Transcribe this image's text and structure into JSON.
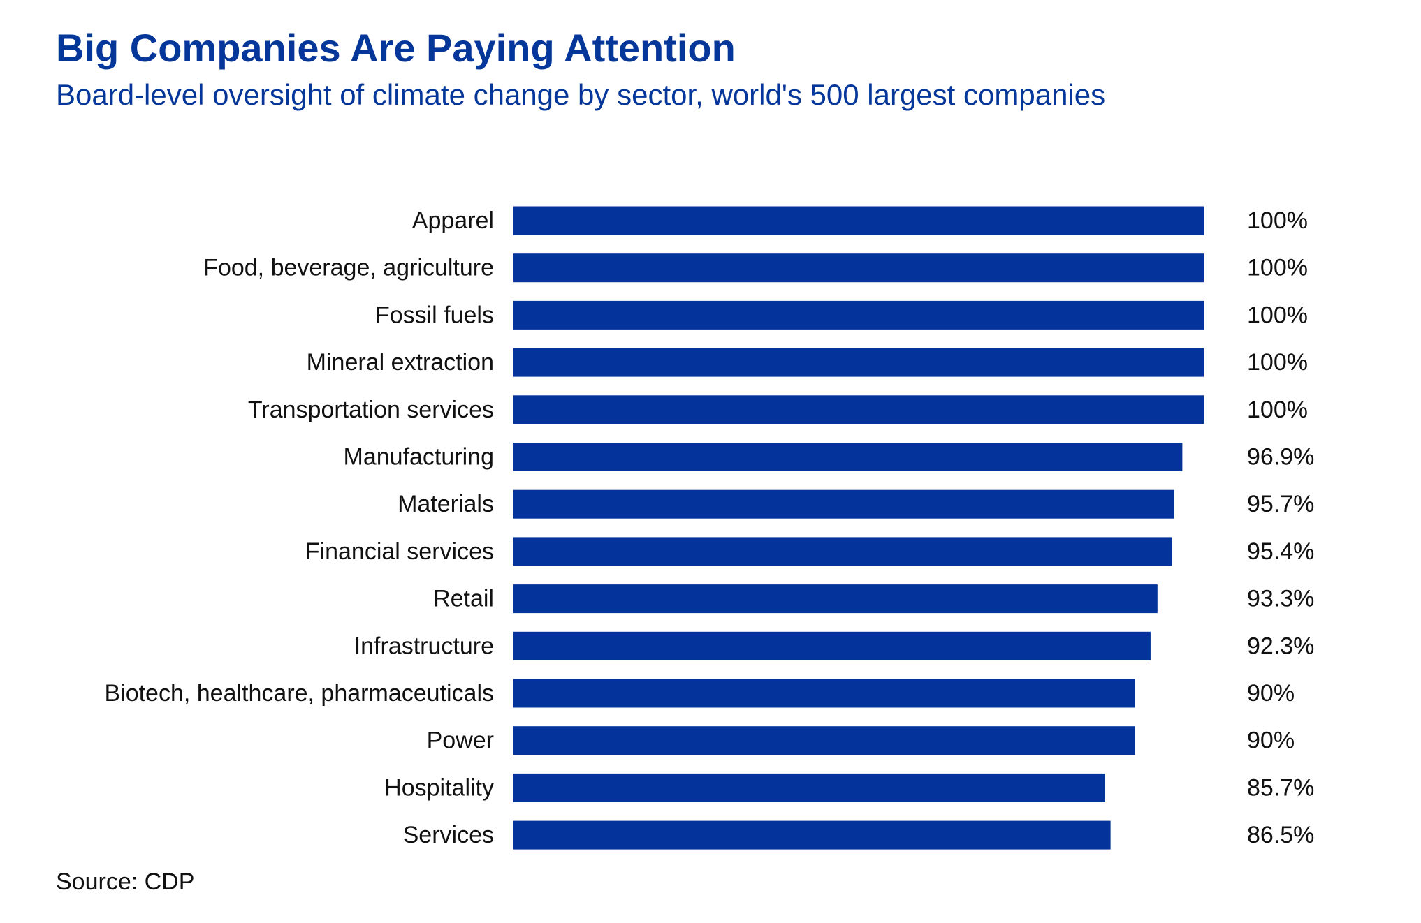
{
  "colors": {
    "accent": "#05379a",
    "bar": "#05339c"
  },
  "chart_data": {
    "type": "bar",
    "orientation": "horizontal",
    "title": "Big Companies Are Paying Attention",
    "subtitle": "Board-level oversight of climate change by sector, world's 500 largest companies",
    "source": "Source: CDP",
    "xlim": [
      0,
      100
    ],
    "grid": false,
    "categories": [
      "Apparel",
      "Food, beverage, agriculture",
      "Fossil fuels",
      "Mineral extraction",
      "Transportation services",
      "Manufacturing",
      "Materials",
      "Financial services",
      "Retail",
      "Infrastructure",
      "Biotech, healthcare, pharmaceuticals",
      "Power",
      "Hospitality",
      "Services"
    ],
    "values": [
      100,
      100,
      100,
      100,
      100,
      96.9,
      95.7,
      95.4,
      93.3,
      92.3,
      90,
      90,
      85.7,
      86.5
    ],
    "value_labels": [
      "100%",
      "100%",
      "100%",
      "100%",
      "100%",
      "96.9%",
      "95.7%",
      "95.4%",
      "93.3%",
      "92.3%",
      "90%",
      "90%",
      "85.7%",
      "86.5%"
    ]
  }
}
